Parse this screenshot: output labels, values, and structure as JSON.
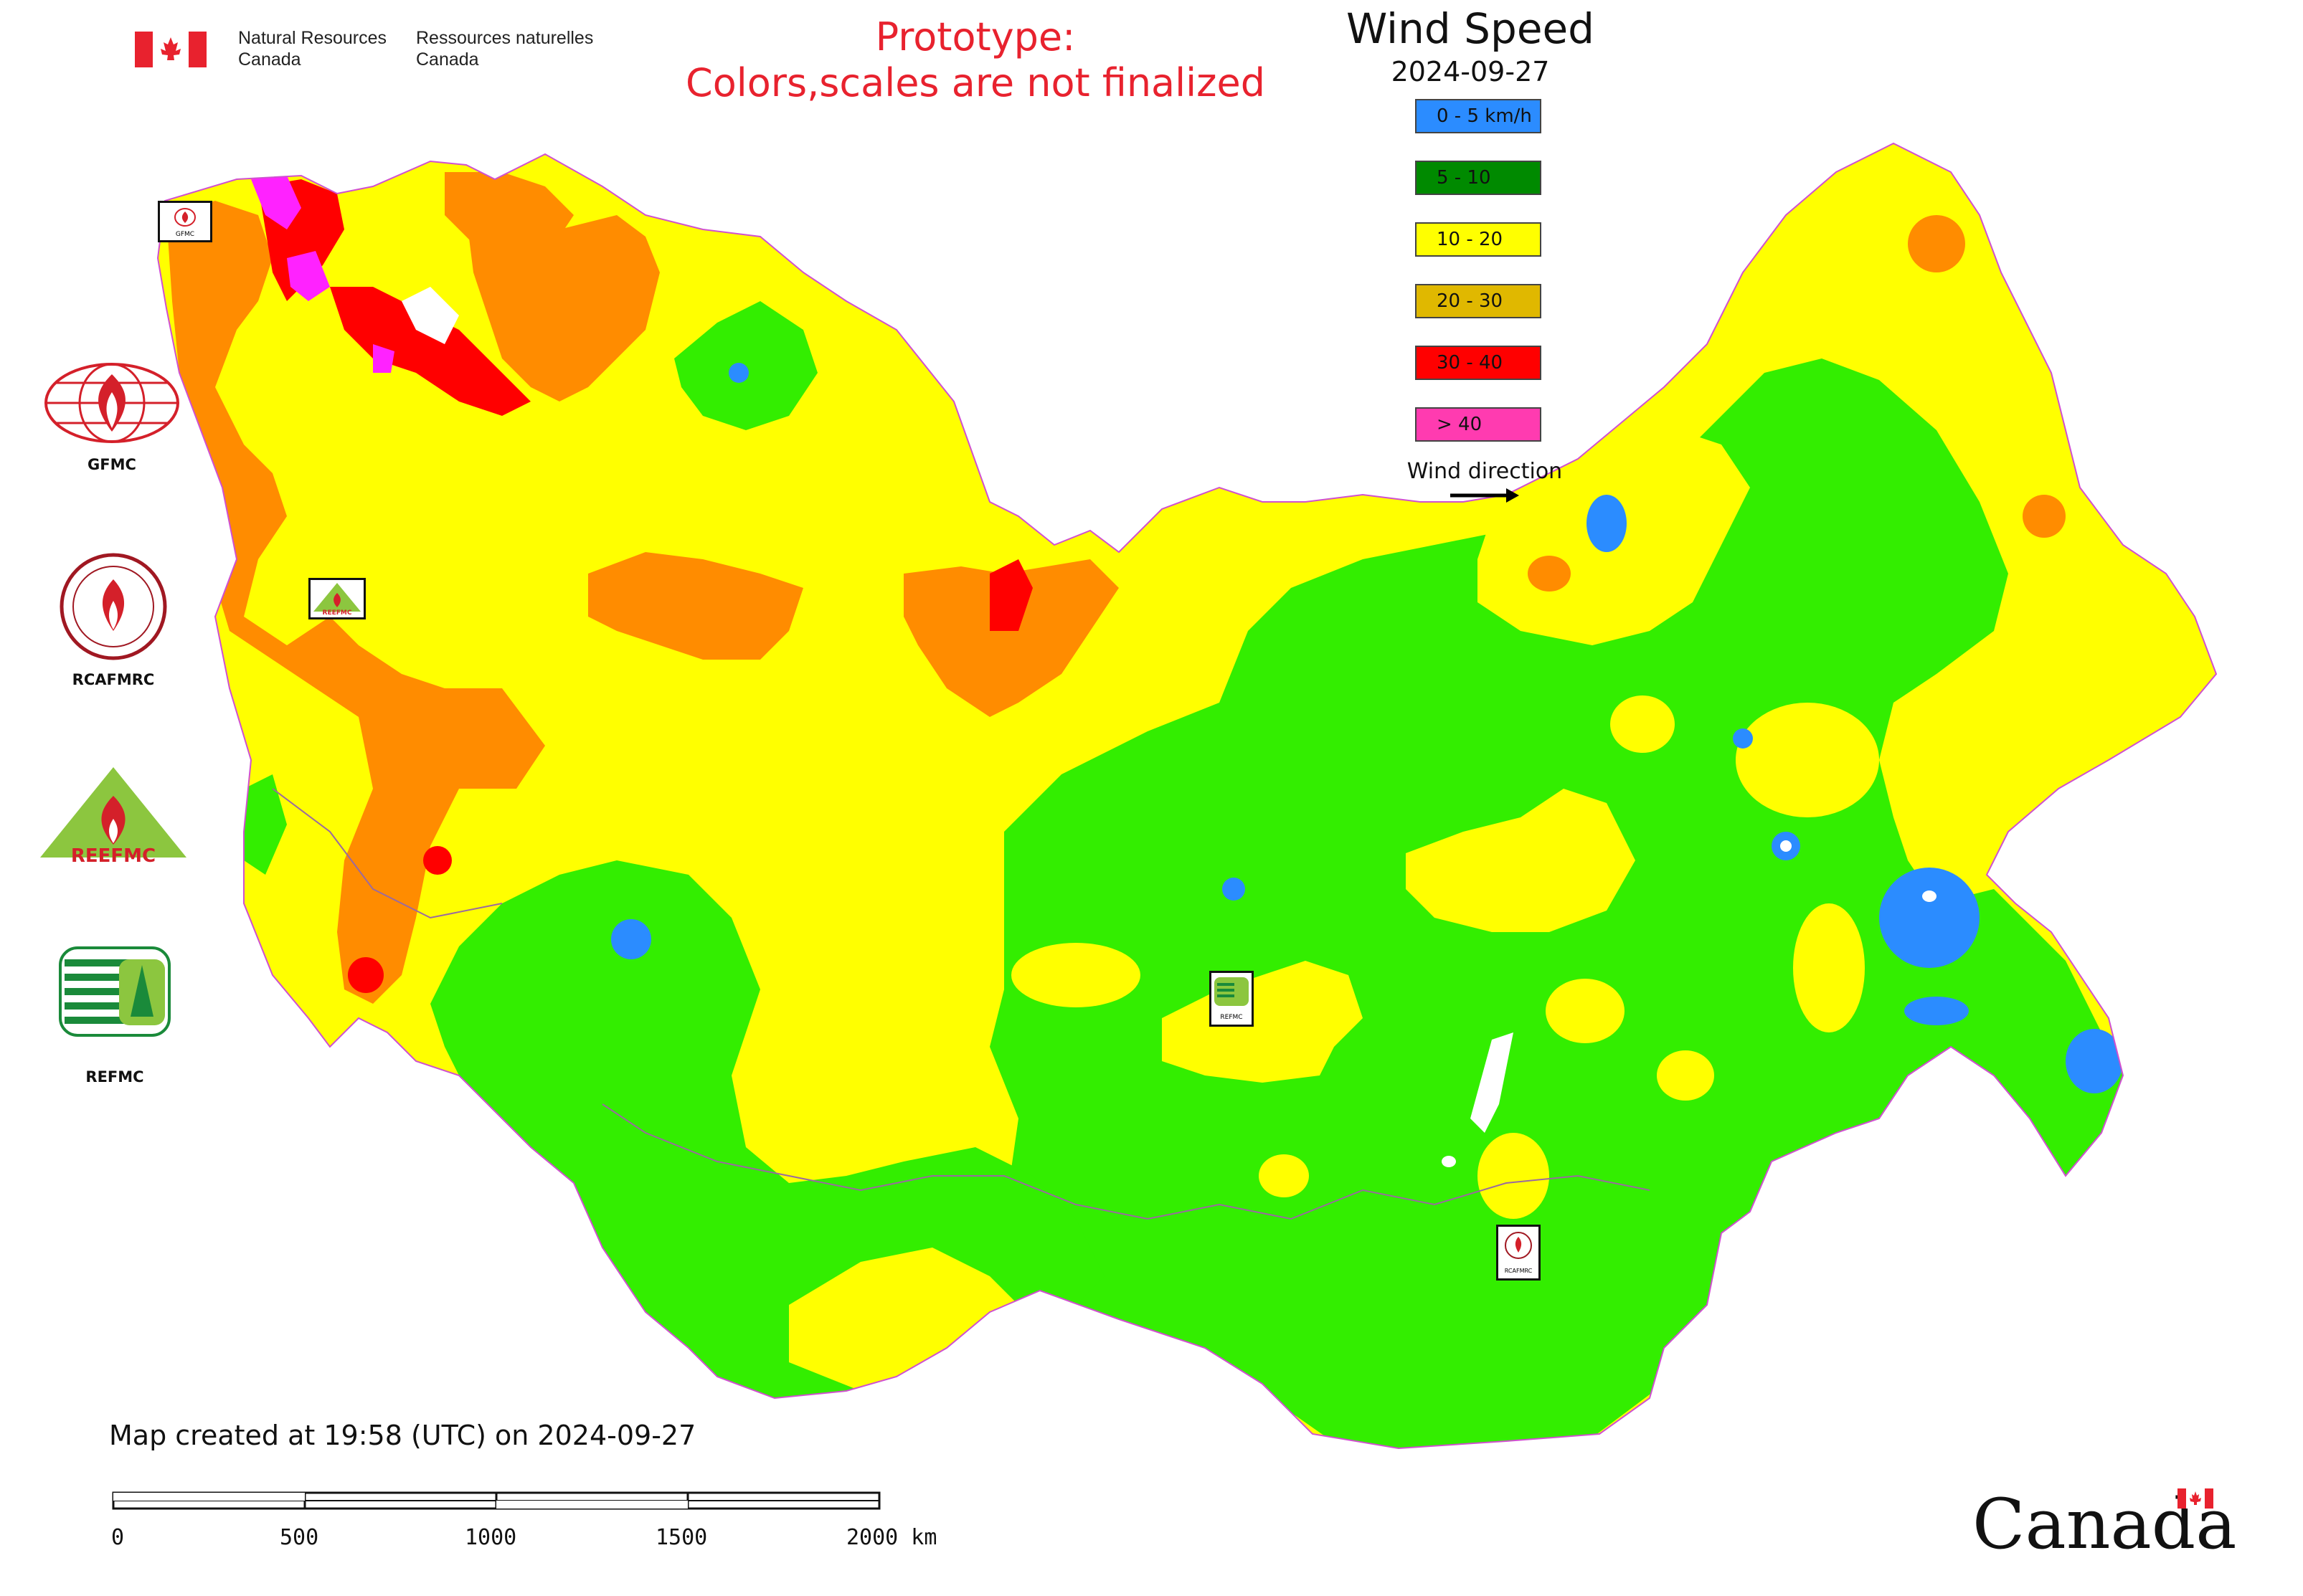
{
  "header": {
    "org_en": "Natural Resources\nCanada",
    "org_fr": "Ressources naturelles\nCanada",
    "prototype_line1": "Prototype:",
    "prototype_line2": "Colors,scales are not finalized"
  },
  "title": {
    "variable": "Wind Speed",
    "date": "2024-09-27"
  },
  "legend": {
    "items": [
      {
        "label": "0 - 5 km/h",
        "color": "#2b8cff"
      },
      {
        "label": "5 - 10",
        "color": "#008a00"
      },
      {
        "label": "10 - 20",
        "color": "#ffff00"
      },
      {
        "label": "20 - 30",
        "color": "#e0b800"
      },
      {
        "label": "30 - 40",
        "color": "#ff0000"
      },
      {
        "label": "> 40",
        "color": "#ff3bb0"
      }
    ],
    "wind_direction_label": "Wind direction"
  },
  "logos": [
    {
      "name": "gfmc-logo",
      "label": "GFMC"
    },
    {
      "name": "rcafmrc-logo",
      "label": "RCAFMRC"
    },
    {
      "name": "reefmc-logo",
      "label": ""
    },
    {
      "name": "refmc-logo",
      "label": "REFMC"
    }
  ],
  "map_marker_labels": {
    "gfmc": "GFMC",
    "reefmc": "REEFMC",
    "refmc": "REFMC",
    "rcafmrc": "RCAFMRC"
  },
  "reefmc_logo_text": "REEFMC",
  "footer": {
    "created": "Map created at 19:58 (UTC) on 2024-09-27",
    "scale_ticks": [
      "0",
      "500",
      "1000",
      "1500",
      "2000 km"
    ],
    "brand": "Canada"
  },
  "map_colors": {
    "lowest": "#2b8cff",
    "low": "#33ee00",
    "mid": "#ffff00",
    "high": "#ff8c00",
    "higher": "#ff0000",
    "highest": "#ff22ff",
    "border": "#d050d0"
  }
}
